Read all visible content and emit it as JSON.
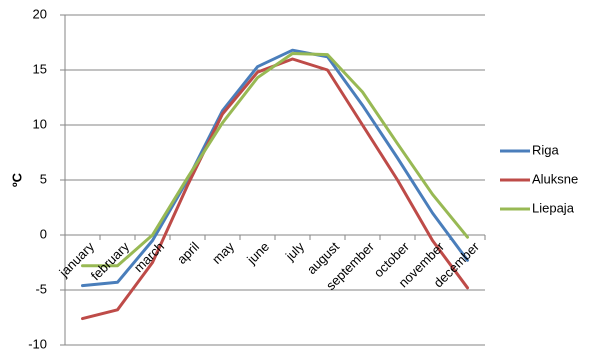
{
  "chart_data": {
    "type": "line",
    "title": "",
    "xlabel": "",
    "ylabel": "ºC",
    "ylim": [
      -10,
      20
    ],
    "ytick_step": 5,
    "grid": true,
    "legend_placement": "right",
    "categories": [
      "january",
      "february",
      "march",
      "april",
      "may",
      "june",
      "july",
      "august",
      "september",
      "october",
      "november",
      "december"
    ],
    "series": [
      {
        "name": "Riga",
        "color": "#4a7ebb",
        "values": [
          -4.6,
          -4.3,
          -0.5,
          5.0,
          11.3,
          15.3,
          16.8,
          16.2,
          11.8,
          7.0,
          2.0,
          -2.3
        ]
      },
      {
        "name": "Aluksne",
        "color": "#be4b48",
        "values": [
          -7.6,
          -6.8,
          -2.5,
          4.5,
          11.0,
          14.8,
          16.0,
          15.0,
          10.0,
          5.0,
          -0.5,
          -4.8
        ]
      },
      {
        "name": "Liepaja",
        "color": "#98b954",
        "values": [
          -2.8,
          -2.8,
          0.0,
          5.2,
          10.2,
          14.3,
          16.5,
          16.4,
          13.0,
          8.3,
          3.7,
          -0.2
        ]
      }
    ]
  }
}
